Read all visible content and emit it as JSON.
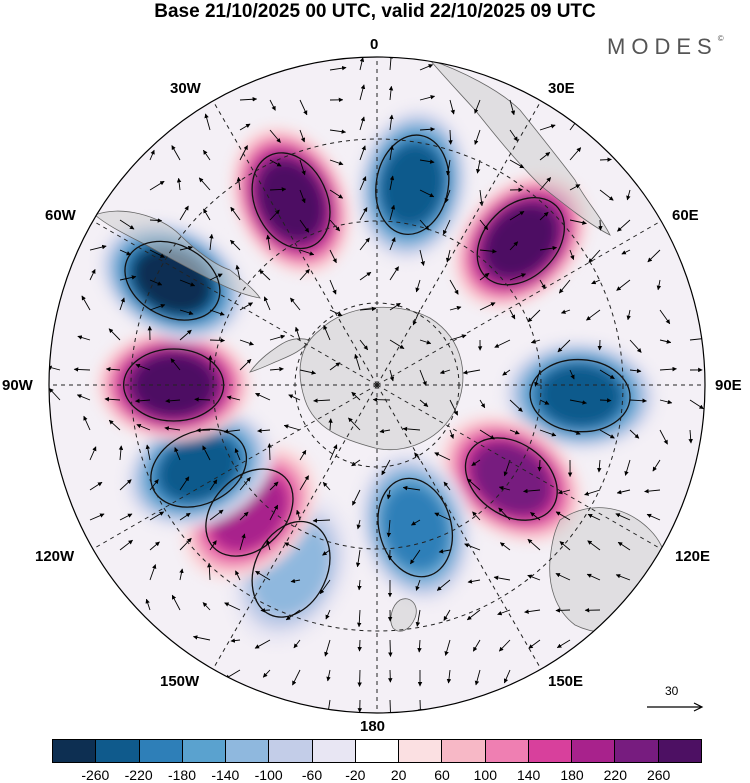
{
  "title": "Base 21/10/2025 00 UTC, valid 22/10/2025 09 UTC",
  "brand": "MODES",
  "brand_mark": "©",
  "longitude_labels": {
    "top": "0",
    "bottom": "180",
    "left": "90W",
    "right": "90E",
    "w30": "30W",
    "e30": "30E",
    "w60": "60W",
    "e60": "60E",
    "w120": "120W",
    "e120": "120E",
    "w150": "150W",
    "e150": "150E"
  },
  "reference_vector": "30",
  "colorbar": {
    "colors": [
      "#0d2f52",
      "#0f5a8c",
      "#2e7fb8",
      "#5aa2cf",
      "#8fb8de",
      "#c3cde8",
      "#e8e6f3",
      "#ffffff",
      "#fbe0e2",
      "#f7b8c6",
      "#ef7fb2",
      "#d8409c",
      "#a8228c",
      "#771c7f",
      "#4d1063"
    ],
    "ticks": [
      "-260",
      "-220",
      "-180",
      "-140",
      "-100",
      "-60",
      "-20",
      "20",
      "60",
      "100",
      "140",
      "180",
      "220",
      "260"
    ]
  },
  "anomaly_centers": [
    {
      "lon": 10,
      "lat_dist": 0.62,
      "value": -220
    },
    {
      "lon": 45,
      "lat_dist": 0.62,
      "value": 260
    },
    {
      "lon": 93,
      "lat_dist": 0.62,
      "value": -220
    },
    {
      "lon": 125,
      "lat_dist": 0.5,
      "value": 220
    },
    {
      "lon": 165,
      "lat_dist": 0.45,
      "value": -180
    },
    {
      "lon": 205,
      "lat_dist": 0.62,
      "value": -100
    },
    {
      "lon": 225,
      "lat_dist": 0.55,
      "value": 180
    },
    {
      "lon": 245,
      "lat_dist": 0.6,
      "value": -220
    },
    {
      "lon": 270,
      "lat_dist": 0.62,
      "value": 260
    },
    {
      "lon": 297,
      "lat_dist": 0.7,
      "value": -260
    },
    {
      "lon": 335,
      "lat_dist": 0.62,
      "value": 260
    }
  ]
}
